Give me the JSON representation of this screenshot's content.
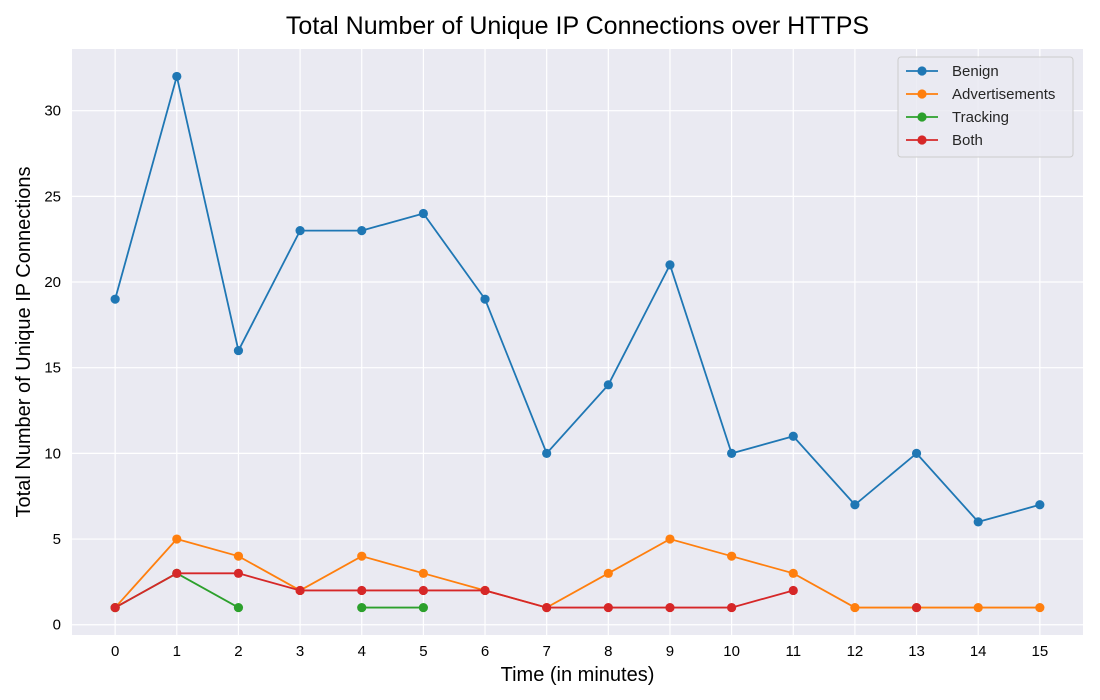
{
  "chart_data": {
    "type": "line",
    "title": "Total Number of Unique IP Connections over HTTPS",
    "xlabel": "Time (in minutes)",
    "ylabel": "Total Number of Unique IP Connections",
    "xlim": [
      -0.7,
      15.7
    ],
    "ylim": [
      -0.6,
      33.6
    ],
    "xticks": [
      0,
      1,
      2,
      3,
      4,
      5,
      6,
      7,
      8,
      9,
      10,
      11,
      12,
      13,
      14,
      15
    ],
    "yticks": [
      0,
      5,
      10,
      15,
      20,
      25,
      30
    ],
    "grid": true,
    "legend_position": "top-right",
    "background": "#eaeaf2",
    "series": [
      {
        "name": "Benign",
        "color": "#1f77b4",
        "x": [
          0,
          1,
          2,
          3,
          4,
          5,
          6,
          7,
          8,
          9,
          10,
          11,
          12,
          13,
          14,
          15
        ],
        "values": [
          19,
          32,
          16,
          23,
          23,
          24,
          19,
          10,
          14,
          21,
          10,
          11,
          7,
          10,
          6,
          7
        ]
      },
      {
        "name": "Advertisements",
        "color": "#ff7f0e",
        "x": [
          0,
          1,
          2,
          3,
          4,
          5,
          6,
          7,
          8,
          9,
          10,
          11,
          12,
          13,
          14,
          15
        ],
        "values": [
          1,
          5,
          4,
          2,
          4,
          3,
          2,
          1,
          3,
          5,
          4,
          3,
          1,
          1,
          1,
          1
        ]
      },
      {
        "name": "Tracking",
        "color": "#2ca02c",
        "x": [
          0,
          1,
          2,
          3,
          4,
          5,
          6,
          7,
          8,
          9,
          10,
          11,
          12,
          13,
          14,
          15
        ],
        "values": [
          1,
          3,
          1,
          null,
          1,
          1,
          null,
          null,
          null,
          null,
          null,
          null,
          null,
          null,
          null,
          null
        ]
      },
      {
        "name": "Both",
        "color": "#d62728",
        "x": [
          0,
          1,
          2,
          3,
          4,
          5,
          6,
          7,
          8,
          9,
          10,
          11,
          12,
          13,
          14,
          15
        ],
        "values": [
          1,
          3,
          3,
          2,
          2,
          2,
          2,
          1,
          1,
          1,
          1,
          2,
          null,
          1,
          null,
          null
        ]
      }
    ]
  }
}
